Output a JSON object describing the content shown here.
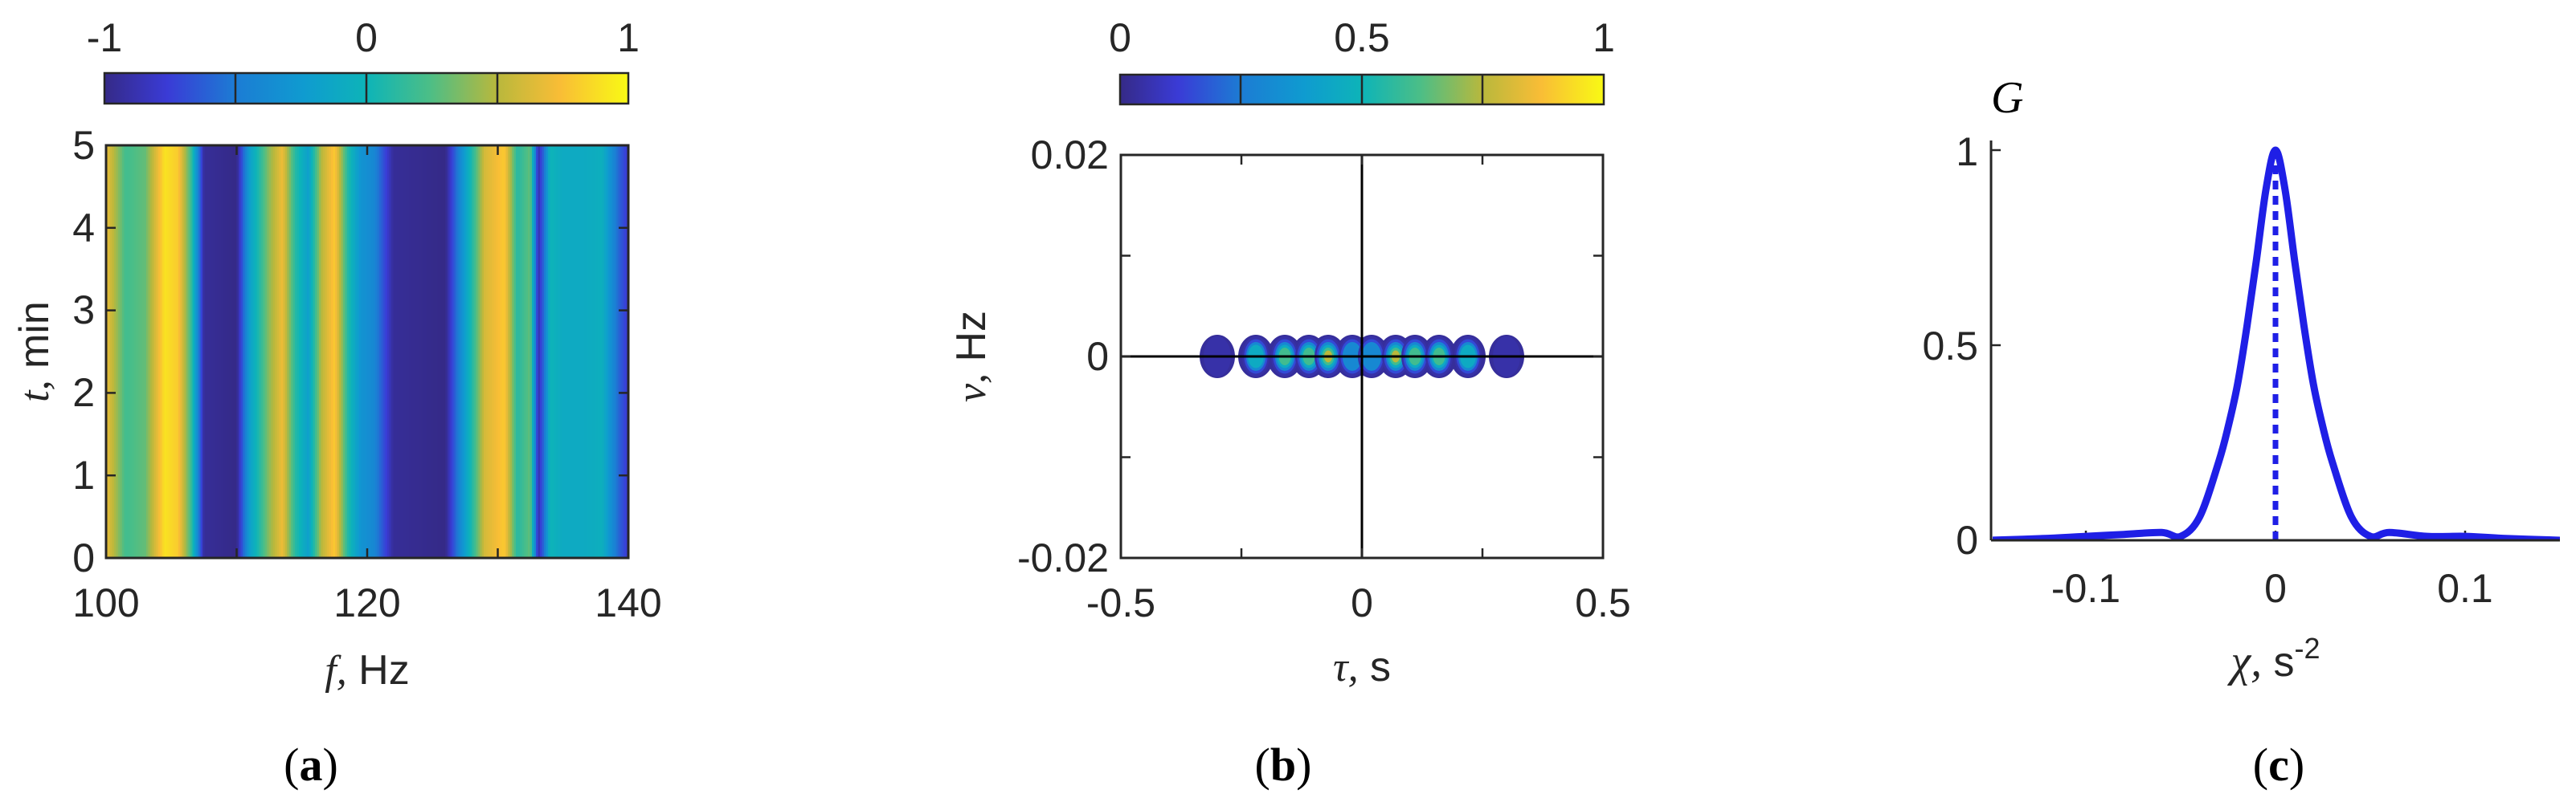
{
  "chart_data": [
    {
      "panel": "a",
      "type": "heatmap",
      "panel_label_open": "(",
      "panel_label": "a",
      "panel_label_close": ")",
      "xlabel_var": "f,",
      "xlabel_unit": "Hz",
      "ylabel_var": "t,",
      "ylabel_unit": "min",
      "xlim": [
        100,
        140
      ],
      "ylim": [
        0,
        5
      ],
      "xticks": [
        "100",
        "120",
        "140"
      ],
      "yticks": [
        "0",
        "1",
        "2",
        "3",
        "4",
        "5"
      ],
      "colorbar": {
        "range": [
          -1,
          1
        ],
        "ticks": [
          "-1",
          "0",
          "1"
        ]
      },
      "profile": {
        "f": [
          100,
          101.5,
          103,
          104.5,
          105.5,
          106.5,
          107.5,
          110,
          111,
          112.5,
          113.5,
          114.5,
          115.5,
          116.5,
          117.5,
          118.5,
          119.5,
          120.5,
          122,
          126,
          127.5,
          129,
          130.5,
          131.5,
          132.5,
          133.1,
          133.6,
          134,
          135,
          136.5,
          138,
          139.3,
          140
        ],
        "value": [
          0.7,
          0.2,
          0.3,
          0.9,
          0.8,
          0.2,
          -0.95,
          -1,
          -0.2,
          0.4,
          0.7,
          0.1,
          -0.2,
          0.5,
          0.8,
          0.1,
          -0.3,
          -0.4,
          -0.95,
          -1,
          -0.2,
          0.6,
          0.8,
          0.1,
          0.3,
          -0.9,
          -0.5,
          0.0,
          -0.1,
          -0.1,
          -0.05,
          -0.6,
          -0.8
        ]
      }
    },
    {
      "panel": "b",
      "type": "heatmap",
      "panel_label_open": "(",
      "panel_label": "b",
      "panel_label_close": ")",
      "xlabel_var": "τ,",
      "xlabel_unit": "s",
      "ylabel_var": "ν,",
      "ylabel_unit": "Hz",
      "xlim": [
        -0.5,
        0.5
      ],
      "ylim": [
        -0.02,
        0.02
      ],
      "xticks": [
        "-0.5",
        "0",
        "0.5"
      ],
      "yticks": [
        "-0.02",
        "0",
        "0.02"
      ],
      "colorbar": {
        "range": [
          0,
          1
        ],
        "ticks": [
          "0",
          "0.5",
          "1"
        ]
      },
      "lobes": [
        {
          "tau": -0.3,
          "peak": 0.05
        },
        {
          "tau": -0.22,
          "peak": 0.45
        },
        {
          "tau": -0.16,
          "peak": 0.7
        },
        {
          "tau": -0.11,
          "peak": 0.65
        },
        {
          "tau": -0.07,
          "peak": 0.85
        },
        {
          "tau": -0.02,
          "peak": 0.3
        },
        {
          "tau": 0.02,
          "peak": 0.3
        },
        {
          "tau": 0.07,
          "peak": 0.85
        },
        {
          "tau": 0.11,
          "peak": 0.65
        },
        {
          "tau": 0.16,
          "peak": 0.7
        },
        {
          "tau": 0.22,
          "peak": 0.45
        },
        {
          "tau": 0.3,
          "peak": 0.05
        }
      ]
    },
    {
      "panel": "c",
      "type": "line",
      "panel_label_open": "(",
      "panel_label": "c",
      "panel_label_close": ")",
      "title": "G",
      "xlabel_var": "χ,",
      "xlabel_unit": "s",
      "xlabel_exp": "-2",
      "xlim": [
        -0.15,
        0.15
      ],
      "ylim": [
        0,
        1
      ],
      "xticks": [
        "-0.1",
        "0",
        "0.1"
      ],
      "yticks": [
        "0",
        "0.5",
        "1"
      ],
      "line_color": "#1f1fe6",
      "marker_x": 0,
      "x": [
        -0.15,
        -0.12,
        -0.1,
        -0.08,
        -0.06,
        -0.05,
        -0.04,
        -0.03,
        -0.025,
        -0.02,
        -0.015,
        -0.01,
        -0.005,
        0,
        0.005,
        0.01,
        0.015,
        0.02,
        0.025,
        0.03,
        0.04,
        0.05,
        0.06,
        0.08,
        0.1,
        0.12,
        0.15
      ],
      "y": [
        0.0,
        0.005,
        0.01,
        0.015,
        0.02,
        0.01,
        0.06,
        0.2,
        0.29,
        0.4,
        0.55,
        0.72,
        0.9,
        1.0,
        0.9,
        0.72,
        0.55,
        0.4,
        0.29,
        0.2,
        0.06,
        0.01,
        0.02,
        0.01,
        0.01,
        0.005,
        0.0
      ]
    }
  ]
}
